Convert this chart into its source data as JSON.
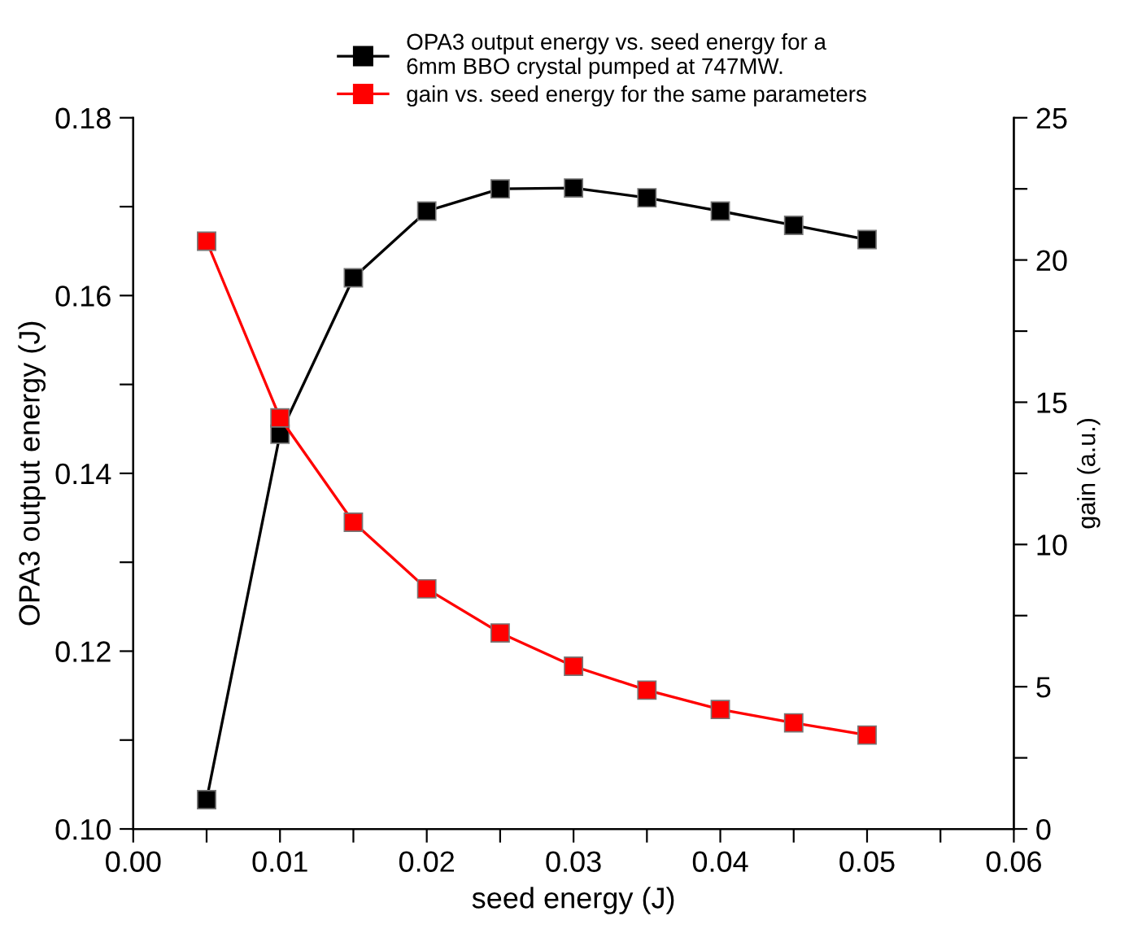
{
  "chart_data": {
    "type": "line",
    "xlabel": "seed energy (J)",
    "ylabel": "OPA3 output energy (J)",
    "y2label": "gain (a.u.)",
    "x": [
      0.005,
      0.01,
      0.015,
      0.02,
      0.025,
      0.03,
      0.035,
      0.04,
      0.045,
      0.05
    ],
    "series": [
      {
        "name": "OPA3 output energy vs. seed energy for a\n6mm BBO crystal pumped at 747MW.",
        "color": "#000000",
        "values": [
          0.1033,
          0.1444,
          0.162,
          0.1695,
          0.172,
          0.1721,
          0.171,
          0.1695,
          0.1679,
          0.1663
        ]
      },
      {
        "name": "gain vs. seed energy for the same parameters",
        "color": "#ff0000",
        "axis": "y2",
        "values": [
          20.66,
          14.45,
          10.78,
          8.44,
          6.89,
          5.72,
          4.88,
          4.2,
          3.73,
          3.3
        ]
      }
    ],
    "xlim": [
      0.0,
      0.06
    ],
    "xticks": [
      {
        "value": 0.0,
        "label": "0.00"
      },
      {
        "value": 0.005,
        "label": null
      },
      {
        "value": 0.01,
        "label": "0.01"
      },
      {
        "value": 0.015,
        "label": null
      },
      {
        "value": 0.02,
        "label": "0.02"
      },
      {
        "value": 0.025,
        "label": null
      },
      {
        "value": 0.03,
        "label": "0.03"
      },
      {
        "value": 0.035,
        "label": null
      },
      {
        "value": 0.04,
        "label": "0.04"
      },
      {
        "value": 0.045,
        "label": null
      },
      {
        "value": 0.05,
        "label": "0.05"
      },
      {
        "value": 0.055,
        "label": null
      },
      {
        "value": 0.06,
        "label": "0.06"
      }
    ],
    "ylim": [
      0.1,
      0.18
    ],
    "yticks": [
      {
        "value": 0.1,
        "label": "0.10"
      },
      {
        "value": 0.11,
        "label": null
      },
      {
        "value": 0.12,
        "label": "0.12"
      },
      {
        "value": 0.13,
        "label": null
      },
      {
        "value": 0.14,
        "label": "0.14"
      },
      {
        "value": 0.15,
        "label": null
      },
      {
        "value": 0.16,
        "label": "0.16"
      },
      {
        "value": 0.17,
        "label": null
      },
      {
        "value": 0.18,
        "label": "0.18"
      }
    ],
    "y2lim": [
      0,
      25
    ],
    "y2ticks": [
      0,
      {
        "value": 2.5,
        "label": null
      },
      5,
      {
        "value": 7.5,
        "label": null
      },
      10,
      {
        "value": 12.5,
        "label": null
      },
      15,
      {
        "value": 17.5,
        "label": null
      },
      20,
      {
        "value": 22.5,
        "label": null
      },
      25
    ],
    "marker": "square",
    "line_style": "solid",
    "grid": false,
    "legend": "top left"
  }
}
